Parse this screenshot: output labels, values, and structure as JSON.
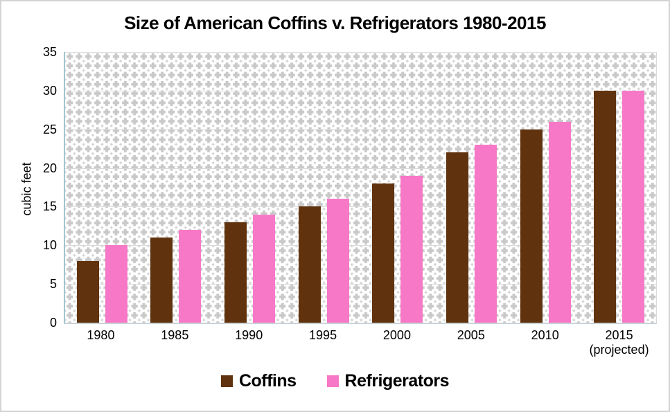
{
  "page": {
    "background": "#ffffff",
    "outer_border_color": "#d3d3d3"
  },
  "colors": {
    "pattern_dot": "#c9c9c9",
    "pattern_dot_small": "#d4d4d4",
    "gridline": "#d9d9d9",
    "axis_left_border": "#9fc6d2",
    "axis_bottom_border": "#c9d4d8",
    "coffins_brown": "#60330e",
    "refrigerators_pink": "#f878c8"
  },
  "chart_data": {
    "type": "bar",
    "title": "Size of American Coffins v. Refrigerators 1980-2015",
    "xlabel": "",
    "ylabel": "cubic feet",
    "categories": [
      "1980",
      "1985",
      "1990",
      "1995",
      "2000",
      "2005",
      "2010",
      "2015"
    ],
    "category_notes": [
      "",
      "",
      "",
      "",
      "",
      "",
      "",
      "(projected)"
    ],
    "series": [
      {
        "name": "Coffins",
        "color": "#60330e",
        "values": [
          8,
          11,
          13,
          15,
          18,
          22,
          25,
          30
        ]
      },
      {
        "name": "Refrigerators",
        "color": "#f878c8",
        "values": [
          10,
          12,
          14,
          16,
          19,
          23,
          26,
          30
        ]
      }
    ],
    "ylim": [
      0,
      35
    ],
    "yticks": [
      0,
      5,
      10,
      15,
      20,
      25,
      30,
      35
    ],
    "grid": "horizontal-only",
    "legend_position": "bottom",
    "plot_area_pattern": "light-gray plus/diamond dot grid on white"
  }
}
